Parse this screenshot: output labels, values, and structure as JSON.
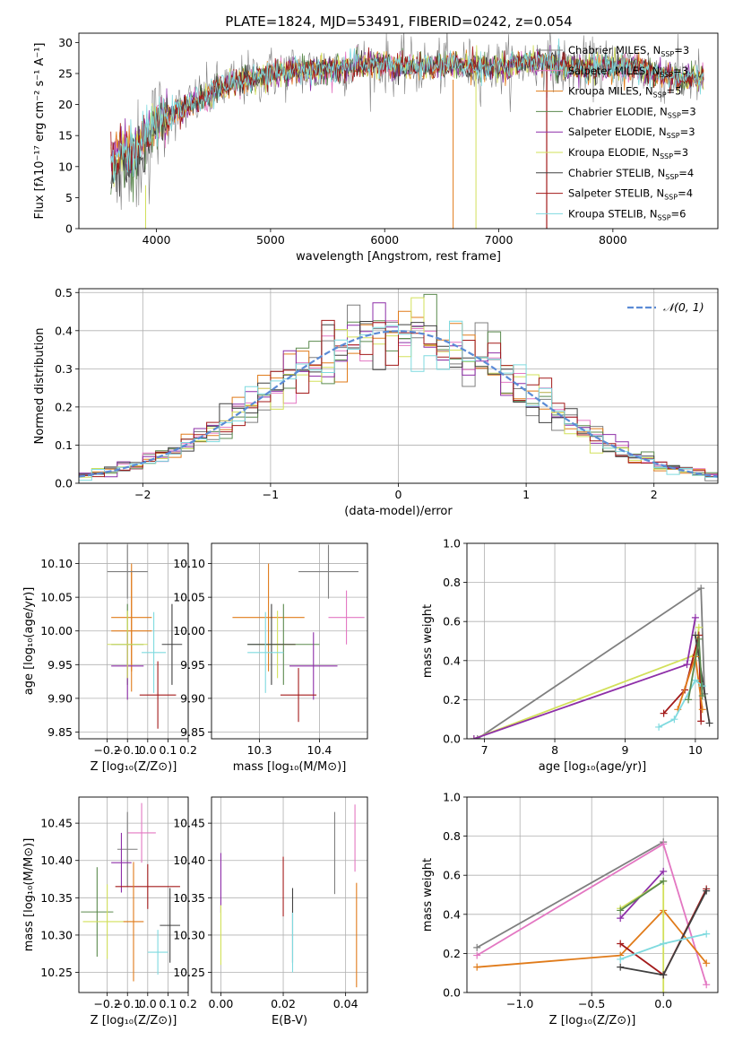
{
  "figure": {
    "title": "PLATE=1824, MJD=53491, FIBERID=0242, z=0.054"
  },
  "series": [
    {
      "name": "Chabrier MILES",
      "nssp": "3",
      "color": "#7f7f7f"
    },
    {
      "name": "Salpeter MILES",
      "nssp": "3",
      "color": "#e377c2"
    },
    {
      "name": "Kroupa MILES",
      "nssp": "5",
      "color": "#e07b1a"
    },
    {
      "name": "Chabrier ELODIE",
      "nssp": "3",
      "color": "#5b8a4e"
    },
    {
      "name": "Salpeter ELODIE",
      "nssp": "3",
      "color": "#8e2fa8"
    },
    {
      "name": "Kroupa ELODIE",
      "nssp": "3",
      "color": "#d2e05a"
    },
    {
      "name": "Chabrier STELIB",
      "nssp": "4",
      "color": "#404040"
    },
    {
      "name": "Salpeter STELIB",
      "nssp": "4",
      "color": "#a31a1a"
    },
    {
      "name": "Kroupa STELIB",
      "nssp": "6",
      "color": "#7fdadf"
    }
  ],
  "chart_data": [
    {
      "id": "spectrum",
      "type": "line",
      "title": "PLATE=1824, MJD=53491, FIBERID=0242, z=0.054",
      "xlabel": "wavelength [Angstrom, rest frame]",
      "ylabel": "Flux [fλ10⁻¹⁷ erg cm⁻² s⁻¹ A⁻¹]",
      "xlim": [
        3320,
        8920
      ],
      "ylim": [
        0,
        31.5
      ],
      "xticks": [
        4000,
        5000,
        6000,
        7000,
        8000
      ],
      "yticks": [
        0,
        5,
        10,
        15,
        20,
        25,
        30
      ],
      "grid": false,
      "legend": "right",
      "continuum": [
        [
          3600,
          11
        ],
        [
          3700,
          13
        ],
        [
          3800,
          12
        ],
        [
          3900,
          15
        ],
        [
          4000,
          17
        ],
        [
          4200,
          19
        ],
        [
          4400,
          21
        ],
        [
          4600,
          23
        ],
        [
          4800,
          24
        ],
        [
          5000,
          25
        ],
        [
          5200,
          25.5
        ],
        [
          5400,
          25.5
        ],
        [
          5600,
          26
        ],
        [
          5800,
          26.5
        ],
        [
          6000,
          26.5
        ],
        [
          6200,
          26
        ],
        [
          6400,
          26
        ],
        [
          6600,
          26.5
        ],
        [
          6800,
          26
        ],
        [
          7000,
          26
        ],
        [
          7200,
          26.5
        ],
        [
          7400,
          27
        ],
        [
          7600,
          26
        ],
        [
          7800,
          26
        ],
        [
          8000,
          26
        ],
        [
          8200,
          26
        ],
        [
          8400,
          25
        ],
        [
          8600,
          24
        ],
        [
          8800,
          24.5
        ]
      ]
    },
    {
      "id": "residuals",
      "type": "histogram",
      "xlabel": "(data-model)/error",
      "ylabel": "Normed distribution",
      "xlim": [
        -2.5,
        2.5
      ],
      "ylim": [
        0,
        0.51
      ],
      "xticks": [
        -2,
        -1,
        0,
        1,
        2
      ],
      "yticks": [
        0.0,
        0.1,
        0.2,
        0.3,
        0.4,
        0.5
      ],
      "grid": true,
      "legend": "top-right",
      "reference_curve": "𝒩(0, 1)",
      "bin_width": 0.1
    },
    {
      "id": "age-vs-z",
      "type": "errorbar",
      "xlabel": "Z [log₁₀(Z/Z⊙)]",
      "ylabel": "age  [log₁₀(age/yr)]",
      "xlim": [
        -0.34,
        0.2
      ],
      "ylim": [
        9.84,
        10.13
      ],
      "xticks": [
        -0.2,
        -0.1,
        0.0,
        0.1,
        0.2
      ],
      "yticks": [
        9.85,
        9.9,
        9.95,
        10.0,
        10.05,
        10.1
      ],
      "grid": true,
      "points": [
        {
          "x": -0.08,
          "xerr": 0.1,
          "y": 10.02,
          "yerr": 0.08,
          "series": "Kroupa MILES"
        },
        {
          "x": -0.08,
          "xerr": 0.1,
          "y": 10.0,
          "yerr": 0.09,
          "series": "Kroupa MILES"
        },
        {
          "x": -0.1,
          "xerr": 0.1,
          "y": 10.088,
          "yerr": 0.04,
          "series": "Chabrier MILES"
        },
        {
          "x": -0.1,
          "xerr": 0.08,
          "y": 9.98,
          "yerr": 0.06,
          "series": "Chabrier ELODIE"
        },
        {
          "x": -0.1,
          "xerr": 0.08,
          "y": 9.948,
          "yerr": 0.05,
          "series": "Salpeter ELODIE"
        },
        {
          "x": -0.1,
          "xerr": 0.1,
          "y": 9.98,
          "yerr": 0.05,
          "series": "Kroupa ELODIE"
        },
        {
          "x": 0.05,
          "xerr": 0.09,
          "y": 9.905,
          "yerr": 0.05,
          "series": "Salpeter STELIB"
        },
        {
          "x": 0.12,
          "xerr": 0.05,
          "y": 9.98,
          "yerr": 0.06,
          "series": "Chabrier STELIB"
        },
        {
          "x": 0.03,
          "xerr": 0.06,
          "y": 9.968,
          "yerr": 0.06,
          "series": "Kroupa STELIB"
        }
      ]
    },
    {
      "id": "age-vs-mass",
      "type": "errorbar",
      "xlabel": "mass [log₁₀(M/M⊙)]",
      "ylabel": "",
      "xlim": [
        10.22,
        10.48
      ],
      "ylim": [
        9.84,
        10.13
      ],
      "xticks": [
        10.3,
        10.4
      ],
      "yticks": [
        9.85,
        9.9,
        9.95,
        10.0,
        10.05,
        10.1
      ],
      "grid": true,
      "points": [
        {
          "x": 10.415,
          "xerr": 0.05,
          "y": 10.088,
          "yerr": 0.04,
          "series": "Chabrier MILES"
        },
        {
          "x": 10.445,
          "xerr": 0.03,
          "y": 10.02,
          "yerr": 0.04,
          "series": "Salpeter MILES"
        },
        {
          "x": 10.315,
          "xerr": 0.06,
          "y": 10.02,
          "yerr": 0.08,
          "series": "Kroupa MILES"
        },
        {
          "x": 10.34,
          "xerr": 0.06,
          "y": 9.98,
          "yerr": 0.06,
          "series": "Chabrier ELODIE"
        },
        {
          "x": 10.39,
          "xerr": 0.04,
          "y": 9.948,
          "yerr": 0.05,
          "series": "Salpeter ELODIE"
        },
        {
          "x": 10.33,
          "xerr": 0.03,
          "y": 9.98,
          "yerr": 0.05,
          "series": "Kroupa ELODIE"
        },
        {
          "x": 10.32,
          "xerr": 0.04,
          "y": 9.98,
          "yerr": 0.06,
          "series": "Chabrier STELIB"
        },
        {
          "x": 10.365,
          "xerr": 0.03,
          "y": 9.905,
          "yerr": 0.04,
          "series": "Salpeter STELIB"
        },
        {
          "x": 10.31,
          "xerr": 0.03,
          "y": 9.968,
          "yerr": 0.06,
          "series": "Kroupa STELIB"
        }
      ]
    },
    {
      "id": "massweight-vs-age",
      "type": "line",
      "xlabel": "age  [log₁₀(age/yr)]",
      "ylabel": "mass weight",
      "xlim": [
        6.75,
        10.32
      ],
      "ylim": [
        0,
        1.0
      ],
      "xticks": [
        7,
        8,
        9,
        10
      ],
      "yticks": [
        0.0,
        0.2,
        0.4,
        0.6,
        0.8,
        1.0
      ],
      "grid": true,
      "lines": [
        {
          "series": "Chabrier MILES",
          "points": [
            [
              6.9,
              0.0
            ],
            [
              10.08,
              0.77
            ],
            [
              10.13,
              0.23
            ]
          ]
        },
        {
          "series": "Kroupa ELODIE",
          "points": [
            [
              6.85,
              0.0
            ],
            [
              10.0,
              0.43
            ],
            [
              10.05,
              0.57
            ]
          ]
        },
        {
          "series": "Salpeter ELODIE",
          "points": [
            [
              6.85,
              0.0
            ],
            [
              9.88,
              0.38
            ],
            [
              10.0,
              0.62
            ]
          ]
        },
        {
          "series": "Salpeter STELIB",
          "points": [
            [
              9.55,
              0.13
            ],
            [
              9.85,
              0.25
            ],
            [
              10.05,
              0.53
            ],
            [
              10.08,
              0.09
            ]
          ]
        },
        {
          "series": "Chabrier STELIB",
          "points": [
            [
              10.0,
              0.53
            ],
            [
              10.2,
              0.08
            ]
          ]
        },
        {
          "series": "Kroupa MILES",
          "points": [
            [
              9.75,
              0.15
            ],
            [
              10.0,
              0.42
            ],
            [
              10.1,
              0.15
            ]
          ]
        },
        {
          "series": "Kroupa STELIB",
          "points": [
            [
              9.48,
              0.06
            ],
            [
              9.7,
              0.1
            ],
            [
              10.0,
              0.3
            ],
            [
              10.1,
              0.27
            ]
          ]
        },
        {
          "series": "Chabrier ELODIE",
          "points": [
            [
              9.9,
              0.2
            ],
            [
              10.05,
              0.51
            ],
            [
              10.1,
              0.22
            ]
          ]
        }
      ]
    },
    {
      "id": "mass-vs-z",
      "type": "errorbar",
      "xlabel": "Z [log₁₀(Z/Z⊙)]",
      "ylabel": "mass [log₁₀(M/M⊙)]",
      "xlim": [
        -0.34,
        0.2
      ],
      "ylim": [
        10.223,
        10.485
      ],
      "xticks": [
        -0.2,
        -0.1,
        0.0,
        0.1,
        0.2
      ],
      "yticks": [
        10.25,
        10.3,
        10.35,
        10.4,
        10.45
      ],
      "grid": true,
      "points": [
        {
          "x": -0.03,
          "xerr": 0.07,
          "y": 10.437,
          "yerr": 0.04,
          "series": "Salpeter MILES"
        },
        {
          "x": -0.1,
          "xerr": 0.05,
          "y": 10.415,
          "yerr": 0.05,
          "series": "Chabrier MILES"
        },
        {
          "x": -0.13,
          "xerr": 0.05,
          "y": 10.397,
          "yerr": 0.04,
          "series": "Salpeter ELODIE"
        },
        {
          "x": 0.0,
          "xerr": 0.16,
          "y": 10.365,
          "yerr": 0.03,
          "series": "Salpeter STELIB"
        },
        {
          "x": -0.25,
          "xerr": 0.08,
          "y": 10.331,
          "yerr": 0.06,
          "series": "Chabrier ELODIE"
        },
        {
          "x": -0.2,
          "xerr": 0.12,
          "y": 10.318,
          "yerr": 0.05,
          "series": "Kroupa ELODIE"
        },
        {
          "x": -0.07,
          "xerr": 0.05,
          "y": 10.318,
          "yerr": 0.08,
          "series": "Kroupa MILES"
        },
        {
          "x": 0.11,
          "xerr": 0.05,
          "y": 10.313,
          "yerr": 0.05,
          "series": "Chabrier STELIB"
        },
        {
          "x": 0.05,
          "xerr": 0.05,
          "y": 10.277,
          "yerr": 0.03,
          "series": "Kroupa STELIB"
        }
      ]
    },
    {
      "id": "mass-vs-ebv",
      "type": "errorbar",
      "xlabel": "E(B-V)",
      "ylabel": "",
      "xlim": [
        -0.003,
        0.047
      ],
      "ylim": [
        10.223,
        10.485
      ],
      "xticks": [
        0.0,
        0.02,
        0.04
      ],
      "yticks": [
        10.25,
        10.3,
        10.35,
        10.4,
        10.45
      ],
      "grid": true,
      "points": [
        {
          "x": 0.0,
          "y": 10.37,
          "yerr": 0.04,
          "series": "Salpeter ELODIE"
        },
        {
          "x": 0.0,
          "y": 10.3,
          "yerr": 0.04,
          "series": "Kroupa ELODIE"
        },
        {
          "x": 0.02,
          "y": 10.365,
          "yerr": 0.04,
          "series": "Salpeter STELIB"
        },
        {
          "x": 0.023,
          "y": 10.313,
          "yerr": 0.05,
          "series": "Chabrier STELIB"
        },
        {
          "x": 0.023,
          "y": 10.29,
          "yerr": 0.04,
          "series": "Kroupa STELIB"
        },
        {
          "x": 0.0365,
          "y": 10.41,
          "yerr": 0.055,
          "series": "Chabrier MILES"
        },
        {
          "x": 0.043,
          "y": 10.43,
          "yerr": 0.045,
          "series": "Salpeter MILES"
        },
        {
          "x": 0.0435,
          "y": 10.3,
          "yerr": 0.07,
          "series": "Kroupa MILES"
        }
      ]
    },
    {
      "id": "massweight-vs-z",
      "type": "line",
      "xlabel": "Z [log₁₀(Z/Z⊙)]",
      "ylabel": "mass weight",
      "xlim": [
        -1.37,
        0.38
      ],
      "ylim": [
        0,
        1.0
      ],
      "xticks": [
        -1.0,
        -0.5,
        0.0
      ],
      "yticks": [
        0.0,
        0.2,
        0.4,
        0.6,
        0.8,
        1.0
      ],
      "grid": true,
      "lines": [
        {
          "series": "Chabrier MILES",
          "points": [
            [
              -1.3,
              0.23
            ],
            [
              0.0,
              0.77
            ]
          ]
        },
        {
          "series": "Salpeter MILES",
          "points": [
            [
              -1.3,
              0.19
            ],
            [
              0.0,
              0.76
            ],
            [
              0.3,
              0.04
            ]
          ]
        },
        {
          "series": "Kroupa MILES",
          "points": [
            [
              -1.3,
              0.13
            ],
            [
              -0.3,
              0.19
            ],
            [
              0.0,
              0.42
            ],
            [
              0.3,
              0.15
            ]
          ]
        },
        {
          "series": "Salpeter ELODIE",
          "points": [
            [
              -0.3,
              0.38
            ],
            [
              0.0,
              0.62
            ]
          ]
        },
        {
          "series": "Kroupa ELODIE",
          "points": [
            [
              -0.3,
              0.43
            ],
            [
              0.0,
              0.57
            ],
            [
              0.0,
              0.0
            ]
          ]
        },
        {
          "series": "Chabrier ELODIE",
          "points": [
            [
              -0.3,
              0.42
            ],
            [
              0.0,
              0.57
            ]
          ]
        },
        {
          "series": "Salpeter STELIB",
          "points": [
            [
              -0.3,
              0.25
            ],
            [
              0.0,
              0.09
            ],
            [
              0.3,
              0.53
            ]
          ]
        },
        {
          "series": "Chabrier STELIB",
          "points": [
            [
              -0.3,
              0.13
            ],
            [
              0.0,
              0.09
            ],
            [
              0.3,
              0.52
            ]
          ]
        },
        {
          "series": "Kroupa STELIB",
          "points": [
            [
              -0.3,
              0.17
            ],
            [
              0.0,
              0.25
            ],
            [
              0.3,
              0.3
            ]
          ]
        }
      ]
    }
  ]
}
